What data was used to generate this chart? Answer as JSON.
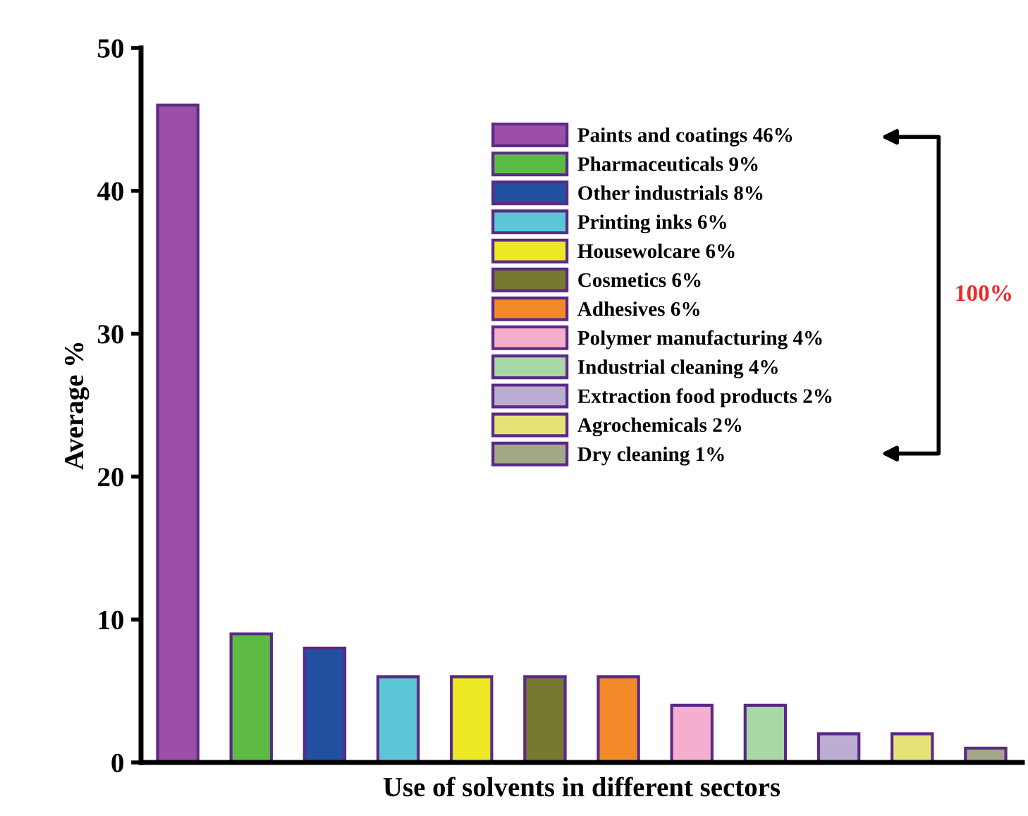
{
  "chart_data": {
    "type": "bar",
    "ylabel": "Average %",
    "xlabel": "Use of solvents in different sectors",
    "categories": [
      null,
      null,
      null,
      null,
      null,
      null,
      null,
      null,
      null,
      null,
      null,
      null
    ],
    "series": [
      {
        "name": "Paints and coatings 46%",
        "color": "#9b4fa6",
        "values": [
          46,
          null,
          null,
          null,
          null,
          null,
          null,
          null,
          null,
          null,
          null,
          null
        ]
      },
      {
        "name": "Pharmaceuticals 9%",
        "color": "#5dba45",
        "values": [
          null,
          9,
          null,
          null,
          null,
          null,
          null,
          null,
          null,
          null,
          null,
          null
        ]
      },
      {
        "name": "Other industrials 8%",
        "color": "#2150a0",
        "values": [
          null,
          null,
          8,
          null,
          null,
          null,
          null,
          null,
          null,
          null,
          null,
          null
        ]
      },
      {
        "name": "Printing inks 6%",
        "color": "#5cc6d6",
        "values": [
          null,
          null,
          null,
          6,
          null,
          null,
          null,
          null,
          null,
          null,
          null,
          null
        ]
      },
      {
        "name": "Housewolcare 6%",
        "color": "#ece824",
        "values": [
          null,
          null,
          null,
          null,
          6,
          null,
          null,
          null,
          null,
          null,
          null,
          null
        ]
      },
      {
        "name": "Cosmetics 6%",
        "color": "#767a30",
        "values": [
          null,
          null,
          null,
          null,
          null,
          6,
          null,
          null,
          null,
          null,
          null,
          null
        ]
      },
      {
        "name": "Adhesives 6%",
        "color": "#f28a2a",
        "values": [
          null,
          null,
          null,
          null,
          null,
          null,
          6,
          null,
          null,
          null,
          null,
          null
        ]
      },
      {
        "name": "Polymer manufacturing 4%",
        "color": "#f4afcf",
        "values": [
          null,
          null,
          null,
          null,
          null,
          null,
          null,
          4,
          null,
          null,
          null,
          null
        ]
      },
      {
        "name": "Industrial cleaning 4%",
        "color": "#a8d8a4",
        "values": [
          null,
          null,
          null,
          null,
          null,
          null,
          null,
          null,
          4,
          null,
          null,
          null
        ]
      },
      {
        "name": "Extraction food products 2%",
        "color": "#bcaed2",
        "values": [
          null,
          null,
          null,
          null,
          null,
          null,
          null,
          null,
          null,
          2,
          null,
          null
        ]
      },
      {
        "name": "Agrochemicals 2%",
        "color": "#e6e276",
        "values": [
          null,
          null,
          null,
          null,
          null,
          null,
          null,
          null,
          null,
          null,
          2,
          null
        ]
      },
      {
        "name": "Dry cleaning 1%",
        "color": "#a4a888",
        "values": [
          null,
          null,
          null,
          null,
          null,
          null,
          null,
          null,
          null,
          null,
          null,
          1
        ]
      }
    ],
    "ylim": [
      0,
      50
    ],
    "yticks": [
      0,
      10,
      20,
      30,
      40,
      50
    ],
    "grid": false,
    "legend": "top right",
    "annotations": [
      "100%"
    ]
  }
}
